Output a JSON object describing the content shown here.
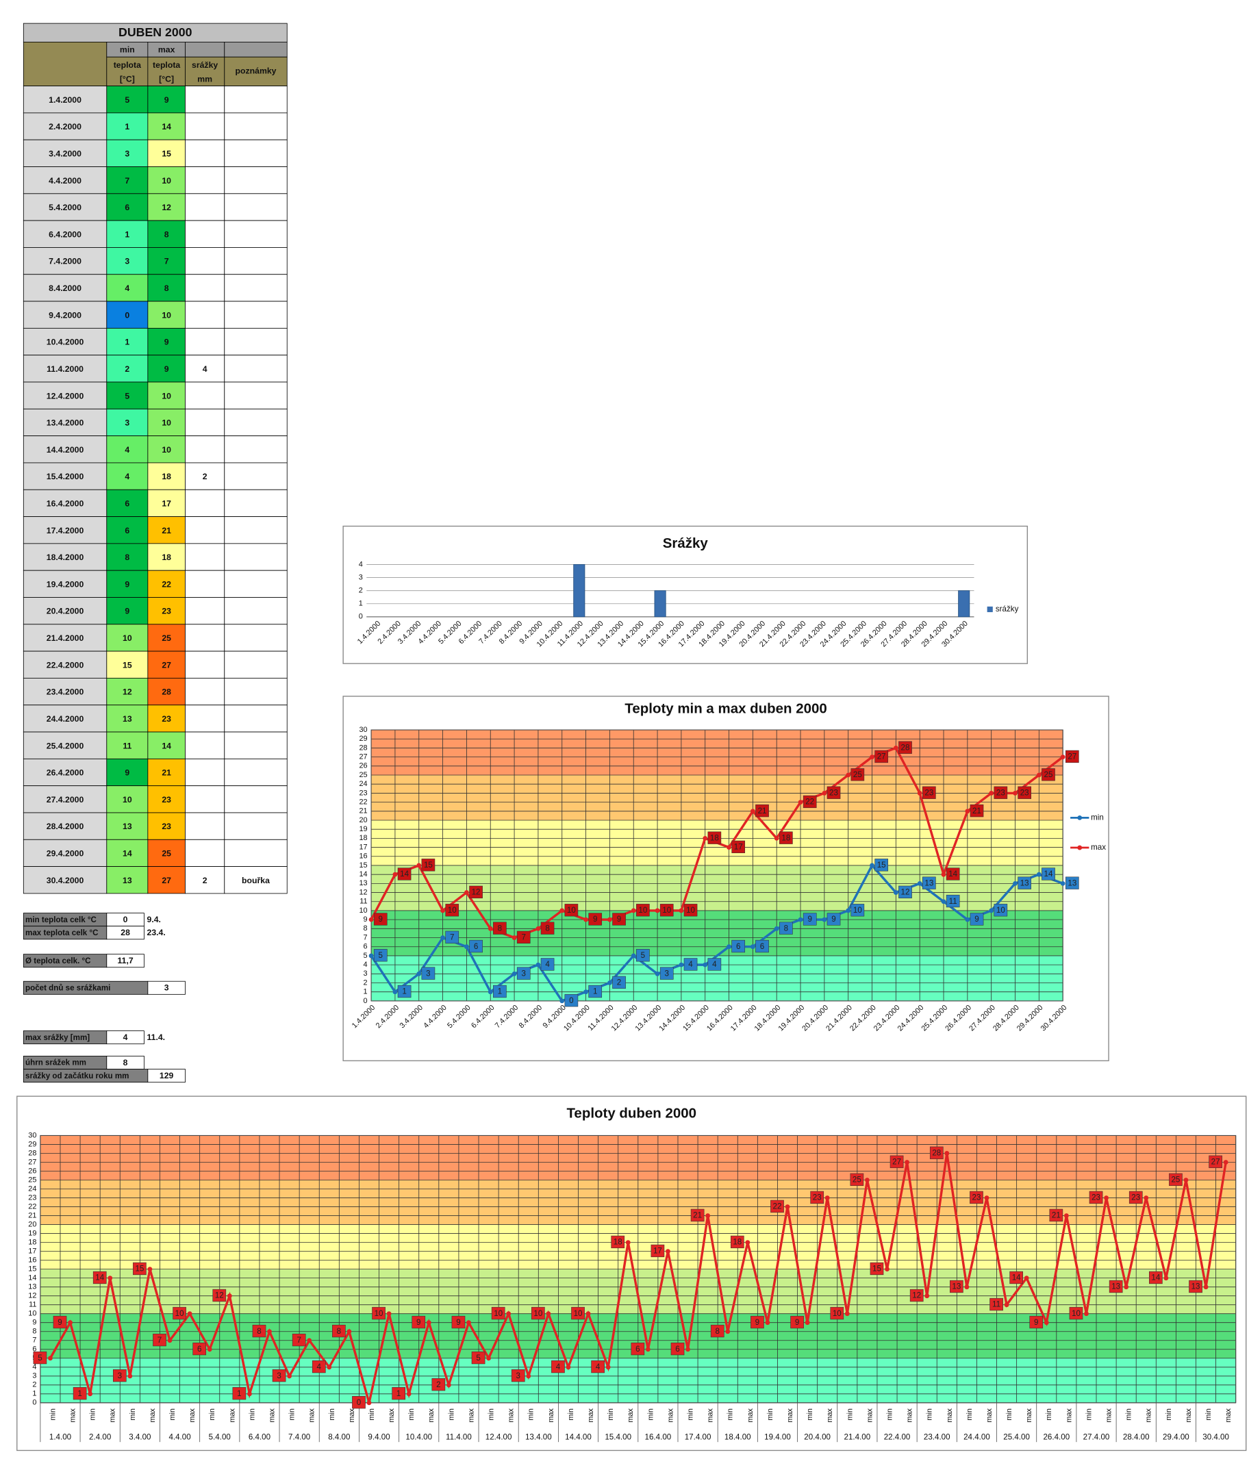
{
  "table": {
    "title": "DUBEN 2000",
    "header": [
      "min",
      "max"
    ],
    "header2": [
      [
        "teplota",
        "[°C]"
      ],
      [
        "teplota",
        "[°C]"
      ],
      [
        "srážky",
        "mm"
      ],
      [
        "poznámky"
      ]
    ],
    "rows": [
      [
        "1.4.2000",
        5,
        9,
        null,
        null
      ],
      [
        "2.4.2000",
        1,
        14,
        null,
        null
      ],
      [
        "3.4.2000",
        3,
        15,
        null,
        null
      ],
      [
        "4.4.2000",
        7,
        10,
        null,
        null
      ],
      [
        "5.4.2000",
        6,
        12,
        null,
        null
      ],
      [
        "6.4.2000",
        1,
        8,
        null,
        null
      ],
      [
        "7.4.2000",
        3,
        7,
        null,
        null
      ],
      [
        "8.4.2000",
        4,
        8,
        null,
        null
      ],
      [
        "9.4.2000",
        0,
        10,
        null,
        null
      ],
      [
        "10.4.2000",
        1,
        9,
        null,
        null
      ],
      [
        "11.4.2000",
        2,
        9,
        4,
        null
      ],
      [
        "12.4.2000",
        5,
        10,
        null,
        null
      ],
      [
        "13.4.2000",
        3,
        10,
        null,
        null
      ],
      [
        "14.4.2000",
        4,
        10,
        null,
        null
      ],
      [
        "15.4.2000",
        4,
        18,
        2,
        null
      ],
      [
        "16.4.2000",
        6,
        17,
        null,
        null
      ],
      [
        "17.4.2000",
        6,
        21,
        null,
        null
      ],
      [
        "18.4.2000",
        8,
        18,
        null,
        null
      ],
      [
        "19.4.2000",
        9,
        22,
        null,
        null
      ],
      [
        "20.4.2000",
        9,
        23,
        null,
        null
      ],
      [
        "21.4.2000",
        10,
        25,
        null,
        null
      ],
      [
        "22.4.2000",
        15,
        27,
        null,
        null
      ],
      [
        "23.4.2000",
        12,
        28,
        null,
        null
      ],
      [
        "24.4.2000",
        13,
        23,
        null,
        null
      ],
      [
        "25.4.2000",
        11,
        14,
        null,
        null
      ],
      [
        "26.4.2000",
        9,
        21,
        null,
        null
      ],
      [
        "27.4.2000",
        10,
        23,
        null,
        null
      ],
      [
        "28.4.2000",
        13,
        23,
        null,
        null
      ],
      [
        "29.4.2000",
        14,
        25,
        null,
        null
      ],
      [
        "30.4.2000",
        13,
        27,
        2,
        "bouřka"
      ]
    ]
  },
  "stats": [
    {
      "label": "min teplota celk °C",
      "value": "0",
      "note": "9.4."
    },
    {
      "label": "max teplota celk °C",
      "value": "28",
      "note": "23.4."
    },
    {
      "label": "Ø teplota celk. °C",
      "value": "11,7"
    },
    {
      "label": "počet dnů se srážkami",
      "value": "3"
    },
    {
      "label": "max srážky [mm]",
      "value": "4",
      "note": "11.4."
    },
    {
      "label": "úhrn srážek mm",
      "value": "8"
    },
    {
      "label": "srážky od začátku roku mm",
      "value": "129"
    }
  ],
  "chart_data": [
    {
      "type": "bar",
      "title": "Srážky",
      "categories": [
        "1.4.2000",
        "2.4.2000",
        "3.4.2000",
        "4.4.2000",
        "5.4.2000",
        "6.4.2000",
        "7.4.2000",
        "8.4.2000",
        "9.4.2000",
        "10.4.2000",
        "11.4.2000",
        "12.4.2000",
        "13.4.2000",
        "14.4.2000",
        "15.4.2000",
        "16.4.2000",
        "17.4.2000",
        "18.4.2000",
        "19.4.2000",
        "20.4.2000",
        "21.4.2000",
        "22.4.2000",
        "23.4.2000",
        "24.4.2000",
        "25.4.2000",
        "26.4.2000",
        "27.4.2000",
        "28.4.2000",
        "29.4.2000",
        "30.4.2000"
      ],
      "series": [
        {
          "name": "srážky",
          "color": "#3a6fb0",
          "values": [
            null,
            null,
            null,
            null,
            null,
            null,
            null,
            null,
            null,
            null,
            4,
            null,
            null,
            null,
            2,
            null,
            null,
            null,
            null,
            null,
            null,
            null,
            null,
            null,
            null,
            null,
            null,
            null,
            null,
            2
          ]
        }
      ],
      "ylim": [
        0,
        4
      ],
      "yticks": [
        0,
        1,
        2,
        3,
        4
      ],
      "grid": true,
      "legend": "right"
    },
    {
      "type": "line",
      "title": "Teploty min a  max duben 2000",
      "categories": [
        "1.4.2000",
        "2.4.2000",
        "3.4.2000",
        "4.4.2000",
        "5.4.2000",
        "6.4.2000",
        "7.4.2000",
        "8.4.2000",
        "9.4.2000",
        "10.4.2000",
        "11.4.2000",
        "12.4.2000",
        "13.4.2000",
        "14.4.2000",
        "15.4.2000",
        "16.4.2000",
        "17.4.2000",
        "18.4.2000",
        "19.4.2000",
        "20.4.2000",
        "21.4.2000",
        "22.4.2000",
        "23.4.2000",
        "24.4.2000",
        "25.4.2000",
        "26.4.2000",
        "27.4.2000",
        "28.4.2000",
        "29.4.2000",
        "30.4.2000"
      ],
      "series": [
        {
          "name": "min",
          "color": "#1f72b8",
          "label_color": "#2a7fc8",
          "values": [
            5,
            1,
            3,
            7,
            6,
            1,
            3,
            4,
            0,
            1,
            2,
            5,
            3,
            4,
            4,
            6,
            6,
            8,
            9,
            9,
            10,
            15,
            12,
            13,
            11,
            9,
            10,
            13,
            14,
            13
          ]
        },
        {
          "name": "max",
          "color": "#e02424",
          "label_color": "#c81414",
          "values": [
            9,
            14,
            15,
            10,
            12,
            8,
            7,
            8,
            10,
            9,
            9,
            10,
            10,
            10,
            18,
            17,
            21,
            18,
            22,
            23,
            25,
            27,
            28,
            23,
            14,
            21,
            23,
            23,
            25,
            27
          ]
        }
      ],
      "ylim": [
        0,
        30
      ],
      "yticks": [
        0,
        1,
        2,
        3,
        4,
        5,
        6,
        7,
        8,
        9,
        10,
        11,
        12,
        13,
        14,
        15,
        16,
        17,
        18,
        19,
        20,
        21,
        22,
        23,
        24,
        25,
        26,
        27,
        28,
        29,
        30
      ],
      "grid": true,
      "legend": "right",
      "bands": [
        {
          "from": 0,
          "to": 5,
          "color": "#66ffc0"
        },
        {
          "from": 5,
          "to": 10,
          "color": "#55dd7a"
        },
        {
          "from": 10,
          "to": 15,
          "color": "#c8f08c"
        },
        {
          "from": 15,
          "to": 20,
          "color": "#ffff99"
        },
        {
          "from": 20,
          "to": 25,
          "color": "#ffc870"
        },
        {
          "from": 25,
          "to": 30,
          "color": "#ff9966"
        }
      ]
    },
    {
      "type": "line",
      "title": "Teploty duben 2000",
      "categories": [
        "min",
        "max",
        "min",
        "max",
        "min",
        "max",
        "min",
        "max",
        "min",
        "max",
        "min",
        "max",
        "min",
        "max",
        "min",
        "max",
        "min",
        "max",
        "min",
        "max",
        "min",
        "max",
        "min",
        "max",
        "min",
        "max",
        "min",
        "max",
        "min",
        "max",
        "min",
        "max",
        "min",
        "max",
        "min",
        "max",
        "min",
        "max",
        "min",
        "max",
        "min",
        "max",
        "min",
        "max",
        "min",
        "max",
        "min",
        "max",
        "min",
        "max",
        "min",
        "max",
        "min",
        "max",
        "min",
        "max",
        "min",
        "max",
        "min",
        "max"
      ],
      "groups": [
        "1.4.00",
        "2.4.00",
        "3.4.00",
        "4.4.00",
        "5.4.00",
        "6.4.00",
        "7.4.00",
        "8.4.00",
        "9.4.00",
        "10.4.00",
        "11.4.00",
        "12.4.00",
        "13.4.00",
        "14.4.00",
        "15.4.00",
        "16.4.00",
        "17.4.00",
        "18.4.00",
        "19.4.00",
        "20.4.00",
        "21.4.00",
        "22.4.00",
        "23.4.00",
        "24.4.00",
        "25.4.00",
        "26.4.00",
        "27.4.00",
        "28.4.00",
        "29.4.00",
        "30.4.00"
      ],
      "series": [
        {
          "color": "#e02424",
          "label_color": "#e02424",
          "values": [
            5,
            9,
            1,
            14,
            3,
            15,
            7,
            10,
            6,
            12,
            1,
            8,
            3,
            7,
            4,
            8,
            0,
            10,
            1,
            9,
            2,
            9,
            5,
            10,
            3,
            10,
            4,
            10,
            4,
            18,
            6,
            17,
            6,
            21,
            8,
            18,
            9,
            22,
            9,
            23,
            10,
            25,
            15,
            27,
            12,
            28,
            13,
            23,
            11,
            14,
            9,
            21,
            10,
            23,
            13,
            23,
            14,
            25,
            13,
            27
          ]
        }
      ],
      "ylim": [
        0,
        30
      ],
      "yticks": [
        0,
        1,
        2,
        3,
        4,
        5,
        6,
        7,
        8,
        9,
        10,
        11,
        12,
        13,
        14,
        15,
        16,
        17,
        18,
        19,
        20,
        21,
        22,
        23,
        24,
        25,
        26,
        27,
        28,
        29,
        30
      ],
      "grid": true,
      "bands": [
        {
          "from": 0,
          "to": 5,
          "color": "#66ffc0"
        },
        {
          "from": 5,
          "to": 10,
          "color": "#55dd7a"
        },
        {
          "from": 10,
          "to": 15,
          "color": "#c8f08c"
        },
        {
          "from": 15,
          "to": 20,
          "color": "#ffff99"
        },
        {
          "from": 20,
          "to": 25,
          "color": "#ffc870"
        },
        {
          "from": 25,
          "to": 30,
          "color": "#ff9966"
        }
      ]
    }
  ]
}
